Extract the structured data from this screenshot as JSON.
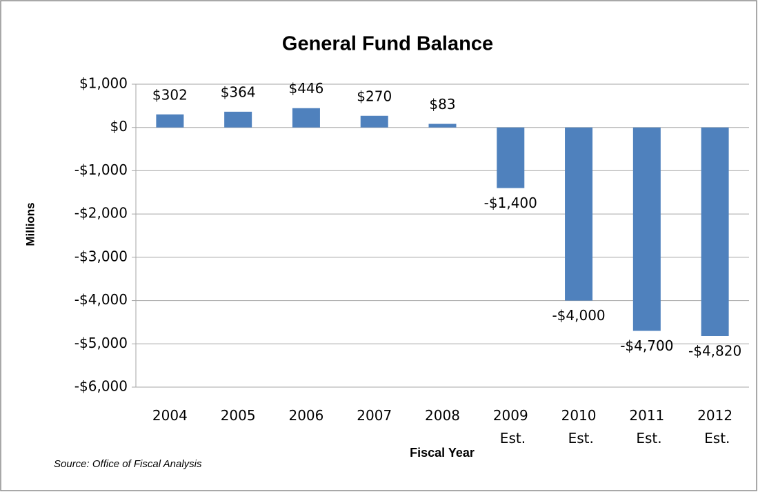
{
  "chart_data": {
    "type": "bar",
    "title": "General Fund Balance",
    "y_axis_label": "Millions",
    "x_axis_label": "Fiscal Year",
    "source": "Source: Office of Fiscal Analysis",
    "categories": [
      "2004",
      "2005",
      "2006",
      "2007",
      "2008",
      "2009 Est.",
      "2010 Est.",
      "2011 Est.",
      "2012 Est."
    ],
    "values": [
      302,
      364,
      446,
      270,
      83,
      -1400,
      -4000,
      -4700,
      -4820
    ],
    "value_labels": [
      "$302",
      "$364",
      "$446",
      "$270",
      "$83",
      "-$1,400",
      "-$4,000",
      "-$4,700",
      "-$4,820"
    ],
    "color": "#4f81bd",
    "ylim": [
      -6000,
      1000
    ],
    "yticks": [
      {
        "value": -6000,
        "label": "-$6,000"
      },
      {
        "value": -5000,
        "label": "-$5,000"
      },
      {
        "value": -4000,
        "label": "-$4,000"
      },
      {
        "value": -3000,
        "label": "-$3,000"
      },
      {
        "value": -2000,
        "label": "-$2,000"
      },
      {
        "value": -1000,
        "label": "-$1,000"
      },
      {
        "value": 0,
        "label": "$0"
      },
      {
        "value": 1000,
        "label": "$1,000"
      }
    ],
    "grid": true
  }
}
